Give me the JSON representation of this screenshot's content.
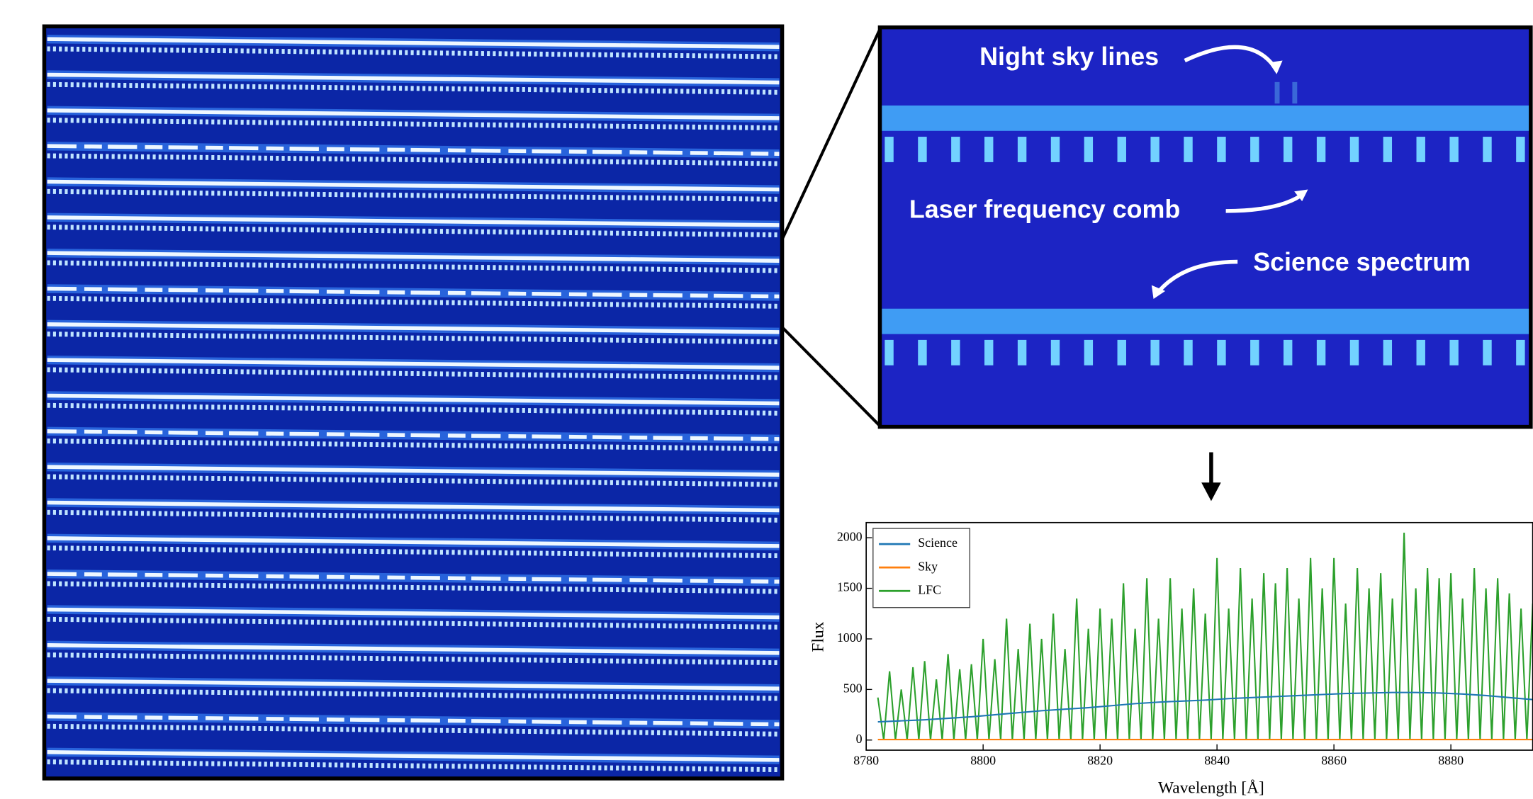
{
  "chart_data": {
    "type": "line",
    "annotations": [
      "Night sky lines",
      "Laser frequency comb",
      "Science spectrum"
    ],
    "xlabel": "Wavelength [Å]",
    "ylabel": "Flux",
    "xlim": [
      8780,
      8894
    ],
    "xticks": [
      8780,
      8800,
      8820,
      8840,
      8860,
      8880
    ],
    "ylim": [
      -100,
      2150
    ],
    "yticks": [
      0,
      500,
      1000,
      1500,
      2000
    ],
    "legend": "upper left",
    "series": [
      {
        "name": "Science",
        "color": "#1f77b4",
        "x": [
          8782,
          8786,
          8790,
          8794,
          8798,
          8802,
          8806,
          8810,
          8814,
          8818,
          8822,
          8826,
          8830,
          8834,
          8838,
          8842,
          8846,
          8850,
          8854,
          8858,
          8862,
          8866,
          8870,
          8874,
          8878,
          8882,
          8886,
          8890,
          8894
        ],
        "values": [
          180,
          190,
          200,
          215,
          230,
          250,
          270,
          290,
          305,
          320,
          340,
          360,
          375,
          385,
          395,
          410,
          420,
          430,
          440,
          450,
          460,
          465,
          470,
          470,
          465,
          455,
          440,
          420,
          400
        ]
      },
      {
        "name": "Sky",
        "color": "#ff7f0e",
        "x": [
          8782,
          8894
        ],
        "values": [
          5,
          5
        ]
      },
      {
        "name": "LFC",
        "color": "#2ca02c",
        "x": [
          8782,
          8783,
          8784,
          8785,
          8786,
          8787,
          8788,
          8789,
          8790,
          8791,
          8792,
          8793,
          8794,
          8795,
          8796,
          8797,
          8798,
          8799,
          8800,
          8801,
          8802,
          8803,
          8804,
          8805,
          8806,
          8807,
          8808,
          8809,
          8810,
          8811,
          8812,
          8813,
          8814,
          8815,
          8816,
          8817,
          8818,
          8819,
          8820,
          8821,
          8822,
          8823,
          8824,
          8825,
          8826,
          8827,
          8828,
          8829,
          8830,
          8831,
          8832,
          8833,
          8834,
          8835,
          8836,
          8837,
          8838,
          8839,
          8840,
          8841,
          8842,
          8843,
          8844,
          8845,
          8846,
          8847,
          8848,
          8849,
          8850,
          8851,
          8852,
          8853,
          8854,
          8855,
          8856,
          8857,
          8858,
          8859,
          8860,
          8861,
          8862,
          8863,
          8864,
          8865,
          8866,
          8867,
          8868,
          8869,
          8870,
          8871,
          8872,
          8873,
          8874,
          8875,
          8876,
          8877,
          8878,
          8879,
          8880,
          8881,
          8882,
          8883,
          8884,
          8885,
          8886,
          8887,
          8888,
          8889,
          8890,
          8891,
          8892,
          8893,
          8894
        ],
        "values": [
          420,
          0,
          680,
          0,
          500,
          0,
          720,
          0,
          780,
          0,
          600,
          0,
          850,
          0,
          700,
          0,
          750,
          0,
          1000,
          0,
          800,
          0,
          1200,
          0,
          900,
          0,
          1150,
          0,
          1000,
          0,
          1250,
          0,
          900,
          0,
          1400,
          0,
          1100,
          0,
          1300,
          0,
          1200,
          0,
          1550,
          0,
          1100,
          0,
          1600,
          0,
          1200,
          0,
          1600,
          0,
          1300,
          0,
          1500,
          0,
          1250,
          0,
          1800,
          0,
          1300,
          0,
          1700,
          0,
          1400,
          0,
          1650,
          0,
          1550,
          0,
          1700,
          0,
          1400,
          0,
          1800,
          0,
          1500,
          0,
          1800,
          0,
          1350,
          0,
          1700,
          0,
          1500,
          0,
          1650,
          0,
          1400,
          0,
          2050,
          0,
          1500,
          0,
          1700,
          0,
          1600,
          0,
          1650,
          0,
          1400,
          0,
          1700,
          0,
          1500,
          0,
          1600,
          0,
          1450,
          0,
          1300,
          0,
          1350
        ]
      }
    ]
  }
}
